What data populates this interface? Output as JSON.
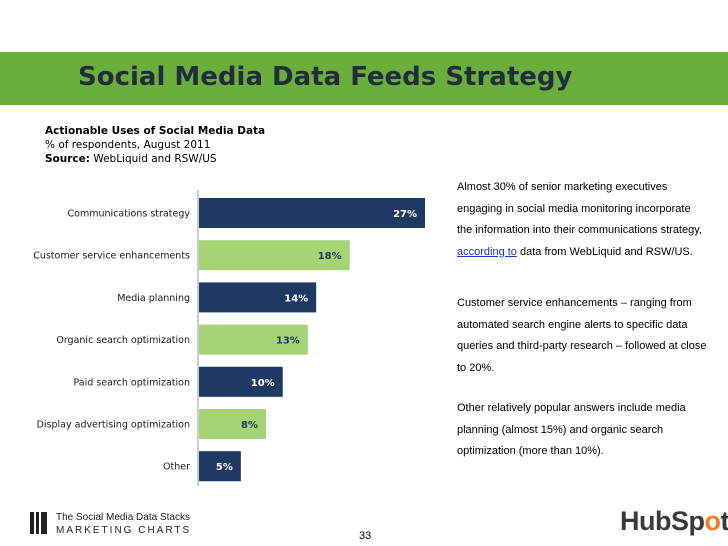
{
  "slide": {
    "title": "Social Media Data Feeds Strategy",
    "subtitle_bold": "Actionable Uses of Social Media Data",
    "subtitle_line2": "% of respondents, August 2011",
    "source_label": "Source:",
    "source_text": "WebLiquid and RSW/US",
    "page_number": "33"
  },
  "side_text": {
    "p1_before": "Almost 30% of senior marketing executives engaging in social media monitoring incorporate the information into their communications strategy,",
    "p1_link": "according to",
    "p1_after": "data from WebLiquid and RSW/US.",
    "p2": "Customer service enhancements – ranging from automated search engine alerts to specific data queries and third-party research – followed at close to 20%.",
    "p3": "Other relatively popular answers include media planning (almost 15%) and organic search optimization (more than 10%)."
  },
  "footer": {
    "logo_line1": "The Social Media Data Stacks",
    "logo_line2": "MARKETING CHARTS",
    "hubspot_a": "HubSp",
    "hubspot_o": "o",
    "hubspot_b": "t"
  },
  "colors": {
    "title_bar": "#6aae3b",
    "navy_bar": "#1f3864",
    "green_bar": "#a6d374"
  },
  "chart_data": {
    "type": "bar",
    "orientation": "horizontal",
    "categories": [
      "Communications strategy",
      "Customer service enhancements",
      "Media planning",
      "Organic search optimization",
      "Paid search optimization",
      "Display advertising optimization",
      "Other"
    ],
    "values": [
      27,
      18,
      14,
      13,
      10,
      8,
      5
    ],
    "value_labels": [
      "27%",
      "18%",
      "14%",
      "13%",
      "10%",
      "8%",
      "5%"
    ],
    "bar_colors": [
      "#1f3864",
      "#a6d374",
      "#1f3864",
      "#a6d374",
      "#1f3864",
      "#a6d374",
      "#1f3864"
    ],
    "label_colors": [
      "#ffffff",
      "#1f3864",
      "#ffffff",
      "#1f3864",
      "#ffffff",
      "#1f3864",
      "#ffffff"
    ],
    "xlim": [
      0,
      27
    ],
    "grid": false,
    "legend": "none"
  }
}
